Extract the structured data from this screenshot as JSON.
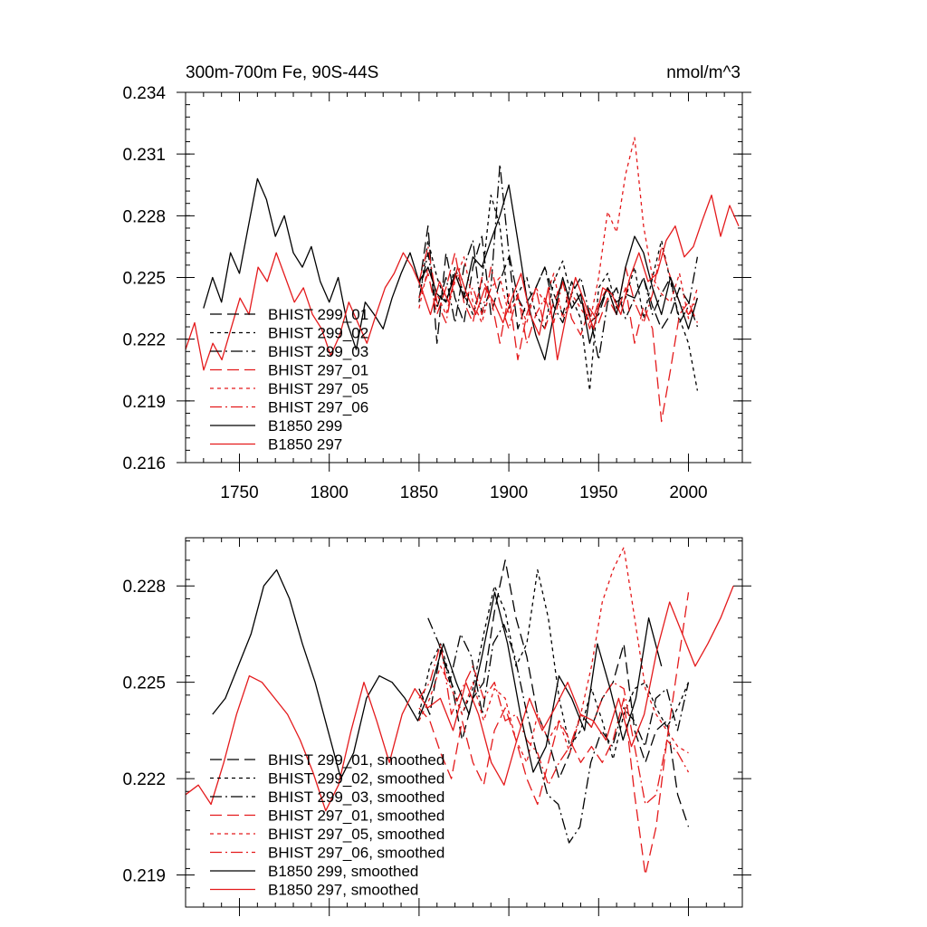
{
  "chart_data": [
    {
      "type": "line",
      "title": "300m-700m Fe, 90S-44S",
      "units": "nmol/m^3",
      "xlim": [
        1720,
        2030
      ],
      "ylim": [
        0.216,
        0.234
      ],
      "xticks": [
        1750,
        1800,
        1850,
        1900,
        1950,
        2000
      ],
      "xtick_labels": [
        "1750",
        "1800",
        "1850",
        "1900",
        "1950",
        "2000"
      ],
      "yticks": [
        0.216,
        0.219,
        0.222,
        0.225,
        0.228,
        0.231,
        0.234
      ],
      "ytick_labels": [
        "0.216",
        "0.219",
        "0.222",
        "0.225",
        "0.228",
        "0.231",
        "0.234"
      ],
      "legend_position": "bottom-left",
      "series": [
        {
          "name": "BHIST 299_01",
          "color": "#000000",
          "dash": "long-dash",
          "x_start": 1850,
          "x_end": 2005,
          "values": [
            0.2245,
            0.2275,
            0.2218,
            0.2262,
            0.224,
            0.2228,
            0.2255,
            0.227,
            0.2232,
            0.2248,
            0.226,
            0.2225,
            0.2238,
            0.2245,
            0.2255,
            0.2242,
            0.2232,
            0.2248,
            0.2238,
            0.2228,
            0.2232,
            0.2245,
            0.2238,
            0.2242,
            0.224,
            0.225,
            0.2236,
            0.2225,
            0.2232,
            0.2245,
            0.2238,
            0.2226
          ]
        },
        {
          "name": "BHIST 299_02",
          "color": "#000000",
          "dash": "short-dash",
          "x_start": 1850,
          "x_end": 2005,
          "values": [
            0.2238,
            0.2268,
            0.225,
            0.2238,
            0.2255,
            0.2242,
            0.2232,
            0.2248,
            0.229,
            0.2275,
            0.2235,
            0.2242,
            0.225,
            0.2232,
            0.2225,
            0.2248,
            0.2258,
            0.224,
            0.223,
            0.2195,
            0.2245,
            0.2252,
            0.2235,
            0.224,
            0.2255,
            0.223,
            0.225,
            0.2268,
            0.2248,
            0.223,
            0.2218,
            0.2195
          ]
        },
        {
          "name": "BHIST 299_03",
          "color": "#000000",
          "dash": "dash-dot",
          "x_start": 1850,
          "x_end": 2005,
          "values": [
            0.224,
            0.2262,
            0.2235,
            0.225,
            0.2228,
            0.2255,
            0.2268,
            0.2232,
            0.2245,
            0.2305,
            0.2262,
            0.224,
            0.2232,
            0.2245,
            0.2255,
            0.2236,
            0.2228,
            0.2242,
            0.225,
            0.2232,
            0.221,
            0.2238,
            0.2245,
            0.223,
            0.224,
            0.225,
            0.2232,
            0.2242,
            0.225,
            0.2228,
            0.2236,
            0.226
          ]
        },
        {
          "name": "BHIST 297_01",
          "color": "#e41a1c",
          "dash": "long-dash",
          "x_start": 1850,
          "x_end": 2005,
          "values": [
            0.224,
            0.2252,
            0.2232,
            0.2245,
            0.2262,
            0.2238,
            0.2228,
            0.225,
            0.224,
            0.2218,
            0.2242,
            0.221,
            0.2232,
            0.2245,
            0.2225,
            0.2238,
            0.2248,
            0.223,
            0.2222,
            0.2235,
            0.2228,
            0.224,
            0.2232,
            0.2245,
            0.2218,
            0.2236,
            0.2225,
            0.218,
            0.2205,
            0.2232,
            0.2238,
            0.2228
          ]
        },
        {
          "name": "BHIST 297_05",
          "color": "#e41a1c",
          "dash": "short-dash",
          "x_start": 1850,
          "x_end": 2005,
          "values": [
            0.2235,
            0.2255,
            0.2242,
            0.2232,
            0.2248,
            0.226,
            0.2238,
            0.2228,
            0.2245,
            0.225,
            0.2232,
            0.224,
            0.2228,
            0.2245,
            0.2238,
            0.2252,
            0.223,
            0.2242,
            0.2235,
            0.2228,
            0.225,
            0.2282,
            0.2272,
            0.23,
            0.2318,
            0.2275,
            0.225,
            0.2242,
            0.2238,
            0.2252,
            0.223,
            0.2245
          ]
        },
        {
          "name": "BHIST 297_06",
          "color": "#e41a1c",
          "dash": "dash-dot",
          "x_start": 1850,
          "x_end": 2005,
          "values": [
            0.2248,
            0.2265,
            0.2238,
            0.2228,
            0.2252,
            0.224,
            0.2245,
            0.2232,
            0.2255,
            0.2238,
            0.2225,
            0.2242,
            0.2218,
            0.2232,
            0.224,
            0.2228,
            0.2248,
            0.2235,
            0.2242,
            0.2225,
            0.2238,
            0.2245,
            0.2232,
            0.2255,
            0.2238,
            0.2228,
            0.2242,
            0.2265,
            0.225,
            0.2238,
            0.2232,
            0.224
          ]
        },
        {
          "name": "B1850 299",
          "color": "#000000",
          "dash": "solid",
          "x_start": 1730,
          "x_end": 2005,
          "values": [
            0.2235,
            0.225,
            0.2238,
            0.2262,
            0.2252,
            0.2275,
            0.2298,
            0.2288,
            0.227,
            0.228,
            0.2262,
            0.2255,
            0.2265,
            0.2248,
            0.2238,
            0.225,
            0.2228,
            0.2215,
            0.2238,
            0.2232,
            0.2225,
            0.224,
            0.2252,
            0.2262,
            0.2248,
            0.2255,
            0.2242,
            0.2238,
            0.2252,
            0.224,
            0.226,
            0.2255,
            0.2268,
            0.228,
            0.2295,
            0.2268,
            0.224,
            0.2222,
            0.221,
            0.2232,
            0.225,
            0.2235,
            0.2242,
            0.2218,
            0.2235,
            0.2245,
            0.2232,
            0.2255,
            0.227,
            0.2262,
            0.2245,
            0.2232,
            0.225,
            0.2238,
            0.2225,
            0.224
          ]
        },
        {
          "name": "B1850 297",
          "color": "#e41a1c",
          "dash": "solid",
          "x_start": 1720,
          "x_end": 2028,
          "values": [
            0.2215,
            0.2228,
            0.2205,
            0.2218,
            0.221,
            0.2225,
            0.224,
            0.2232,
            0.2255,
            0.2248,
            0.2262,
            0.225,
            0.2238,
            0.2245,
            0.2232,
            0.2225,
            0.2212,
            0.2222,
            0.2238,
            0.2228,
            0.2218,
            0.2232,
            0.2245,
            0.2252,
            0.2262,
            0.2255,
            0.2245,
            0.2232,
            0.2248,
            0.2238,
            0.2255,
            0.2242,
            0.2232,
            0.2245,
            0.2238,
            0.2228,
            0.224,
            0.2252,
            0.2232,
            0.2222,
            0.2245,
            0.221,
            0.2232,
            0.225,
            0.2238,
            0.2225,
            0.2245,
            0.2242,
            0.2232,
            0.225,
            0.2262,
            0.2248,
            0.2252,
            0.2268,
            0.2275,
            0.226,
            0.2265,
            0.2278,
            0.229,
            0.227,
            0.2285,
            0.2275
          ]
        }
      ]
    },
    {
      "type": "line",
      "title": "",
      "units": "",
      "xlim": [
        1720,
        2030
      ],
      "ylim": [
        0.218,
        0.2295
      ],
      "xticks": [
        1750,
        1800,
        1850,
        1900,
        1950,
        2000
      ],
      "xtick_labels": [],
      "yticks": [
        0.219,
        0.222,
        0.225,
        0.228
      ],
      "ytick_labels": [
        "0.219",
        "0.222",
        "0.225",
        "0.228"
      ],
      "legend_position": "bottom-left",
      "series": [
        {
          "name": "BHIST 299_01, smoothed",
          "color": "#000000",
          "dash": "long-dash",
          "x_start": 1850,
          "x_end": 2000,
          "values": [
            0.2248,
            0.224,
            0.226,
            0.225,
            0.2232,
            0.2245,
            0.225,
            0.2272,
            0.2288,
            0.227,
            0.2258,
            0.224,
            0.2232,
            0.222,
            0.2228,
            0.224,
            0.2236,
            0.2245,
            0.225,
            0.2262,
            0.2235,
            0.2225,
            0.2235,
            0.2238,
            0.2215,
            0.2205
          ]
        },
        {
          "name": "BHIST 299_02, smoothed",
          "color": "#000000",
          "dash": "short-dash",
          "x_start": 1850,
          "x_end": 2000,
          "values": [
            0.224,
            0.2255,
            0.2262,
            0.225,
            0.224,
            0.2248,
            0.2265,
            0.228,
            0.2272,
            0.2255,
            0.2262,
            0.2285,
            0.227,
            0.2245,
            0.223,
            0.2235,
            0.2248,
            0.2238,
            0.2226,
            0.224,
            0.2248,
            0.225,
            0.2242,
            0.2236,
            0.2242,
            0.225
          ]
        },
        {
          "name": "BHIST 299_03, smoothed",
          "color": "#000000",
          "dash": "dash-dot",
          "x_start": 1855,
          "x_end": 2000,
          "values": [
            0.227,
            0.2262,
            0.225,
            0.2265,
            0.2258,
            0.224,
            0.2262,
            0.2268,
            0.2258,
            0.2242,
            0.2228,
            0.2215,
            0.2212,
            0.22,
            0.2205,
            0.2225,
            0.2235,
            0.223,
            0.2242,
            0.2238,
            0.223,
            0.2245,
            0.2248,
            0.2235,
            0.225
          ]
        },
        {
          "name": "BHIST 297_01, smoothed",
          "color": "#e41a1c",
          "dash": "long-dash",
          "x_start": 1850,
          "x_end": 2000,
          "values": [
            0.2242,
            0.2238,
            0.2228,
            0.222,
            0.2238,
            0.2225,
            0.2218,
            0.2235,
            0.2242,
            0.2232,
            0.222,
            0.2212,
            0.2225,
            0.2238,
            0.2232,
            0.2225,
            0.223,
            0.2225,
            0.2232,
            0.2245,
            0.2215,
            0.219,
            0.2205,
            0.2232,
            0.2255,
            0.2278
          ]
        },
        {
          "name": "BHIST 297_05, smoothed",
          "color": "#e41a1c",
          "dash": "short-dash",
          "x_start": 1850,
          "x_end": 2000,
          "values": [
            0.2238,
            0.2245,
            0.2255,
            0.2248,
            0.224,
            0.225,
            0.2238,
            0.2248,
            0.2245,
            0.2232,
            0.2225,
            0.224,
            0.2232,
            0.2238,
            0.2228,
            0.224,
            0.2255,
            0.2275,
            0.2285,
            0.2292,
            0.227,
            0.2248,
            0.224,
            0.2235,
            0.223,
            0.2228
          ]
        },
        {
          "name": "BHIST 297_06, smoothed",
          "color": "#e41a1c",
          "dash": "dash-dot",
          "x_start": 1850,
          "x_end": 2000,
          "values": [
            0.2245,
            0.225,
            0.2262,
            0.224,
            0.2248,
            0.2255,
            0.2245,
            0.225,
            0.2238,
            0.224,
            0.2232,
            0.2228,
            0.2218,
            0.2225,
            0.223,
            0.224,
            0.2236,
            0.2245,
            0.225,
            0.2248,
            0.223,
            0.2212,
            0.2215,
            0.2232,
            0.2228,
            0.2222
          ]
        },
        {
          "name": "B1850 299, smoothed",
          "color": "#000000",
          "dash": "solid",
          "x_start": 1735,
          "x_end": 1985,
          "values": [
            0.224,
            0.2245,
            0.2255,
            0.2265,
            0.228,
            0.2285,
            0.2276,
            0.2262,
            0.225,
            0.2235,
            0.222,
            0.2228,
            0.2245,
            0.2252,
            0.225,
            0.2245,
            0.2238,
            0.2248,
            0.2262,
            0.225,
            0.224,
            0.2258,
            0.2278,
            0.2262,
            0.224,
            0.2222,
            0.223,
            0.2252,
            0.2245,
            0.2235,
            0.2262,
            0.2248,
            0.2232,
            0.2245,
            0.227,
            0.2255
          ]
        },
        {
          "name": "B1850 297, smoothed",
          "color": "#e41a1c",
          "dash": "solid",
          "x_start": 1720,
          "x_end": 2025,
          "values": [
            0.2215,
            0.2218,
            0.2212,
            0.2225,
            0.224,
            0.2252,
            0.225,
            0.2245,
            0.224,
            0.2232,
            0.2222,
            0.221,
            0.2218,
            0.2235,
            0.225,
            0.2238,
            0.2225,
            0.224,
            0.2248,
            0.2242,
            0.2245,
            0.2235,
            0.225,
            0.224,
            0.2225,
            0.2218,
            0.2232,
            0.2245,
            0.2235,
            0.2242,
            0.225,
            0.224,
            0.2238,
            0.2232,
            0.2245,
            0.223,
            0.224,
            0.226,
            0.2275,
            0.2265,
            0.2255,
            0.2262,
            0.227,
            0.228
          ]
        }
      ]
    }
  ]
}
